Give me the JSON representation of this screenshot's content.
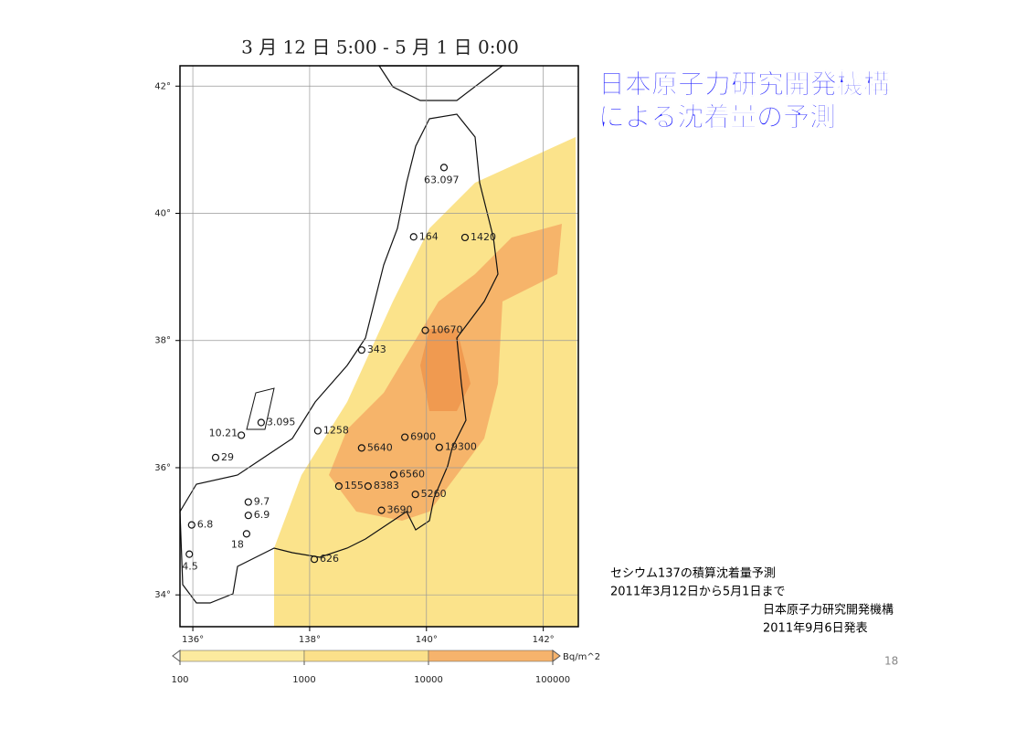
{
  "slide": {
    "title_line1": "日本原子力研究開発機構",
    "title_line2": "による沈着量の予測",
    "page_number": "18"
  },
  "caption": {
    "line1": "セシウム137の積算沈着量予測",
    "line2": "2011年3月12日から5月1日まで",
    "line3": "日本原子力研究開発機構",
    "line4": "2011年9月6日発表"
  },
  "map": {
    "title": "3 月 12 日 5:00 - 5 月 1 日 0:00",
    "xlim": [
      135.78,
      142.6
    ],
    "ylim": [
      33.5,
      42.32
    ],
    "lon_ticks": [
      {
        "value": 136,
        "label": "136°"
      },
      {
        "value": 138,
        "label": "138°"
      },
      {
        "value": 140,
        "label": "140°"
      },
      {
        "value": 142,
        "label": "142°"
      }
    ],
    "lat_ticks": [
      {
        "value": 42,
        "label": "42°"
      },
      {
        "value": 40,
        "label": "40°"
      },
      {
        "value": 38,
        "label": "38°"
      },
      {
        "value": 36,
        "label": "36°"
      },
      {
        "value": 34,
        "label": "34°"
      }
    ],
    "stations": [
      {
        "label": "63.097",
        "lon": 140.3,
        "lat": 40.72
      },
      {
        "label": "164",
        "lon": 139.78,
        "lat": 39.63
      },
      {
        "label": "1420",
        "lon": 140.66,
        "lat": 39.62
      },
      {
        "label": "10670",
        "lon": 139.98,
        "lat": 38.16
      },
      {
        "label": "343",
        "lon": 138.89,
        "lat": 37.85
      },
      {
        "label": "1258",
        "lon": 138.14,
        "lat": 36.58
      },
      {
        "label": "6900",
        "lon": 139.63,
        "lat": 36.48
      },
      {
        "label": "5640",
        "lon": 138.89,
        "lat": 36.31
      },
      {
        "label": "19300",
        "lon": 140.22,
        "lat": 36.32
      },
      {
        "label": "10.21",
        "lon": 136.83,
        "lat": 36.51
      },
      {
        "label": "3.095",
        "lon": 137.17,
        "lat": 36.71
      },
      {
        "label": "29",
        "lon": 136.39,
        "lat": 36.16
      },
      {
        "label": "6560",
        "lon": 139.44,
        "lat": 35.89
      },
      {
        "label": "155",
        "lon": 138.5,
        "lat": 35.71
      },
      {
        "label": "8383",
        "lon": 139.0,
        "lat": 35.71
      },
      {
        "label": "5260",
        "lon": 139.81,
        "lat": 35.58
      },
      {
        "label": "3690",
        "lon": 139.23,
        "lat": 35.33
      },
      {
        "label": "9.7",
        "lon": 136.95,
        "lat": 35.46
      },
      {
        "label": "6.9",
        "lon": 136.95,
        "lat": 35.25
      },
      {
        "label": "6.8",
        "lon": 135.98,
        "lat": 35.1
      },
      {
        "label": "18",
        "lon": 136.92,
        "lat": 34.96
      },
      {
        "label": "4.5",
        "lon": 135.94,
        "lat": 34.64
      },
      {
        "label": "626",
        "lon": 138.08,
        "lat": 34.56
      }
    ],
    "colorbar": {
      "unit": "Bq/m^2",
      "log_scale": true,
      "lim": [
        100,
        100000
      ],
      "ticks": [
        100,
        1000,
        10000,
        100000
      ],
      "colors": [
        "#fcea9e",
        "#fbe08a",
        "#f6b36c"
      ]
    }
  }
}
